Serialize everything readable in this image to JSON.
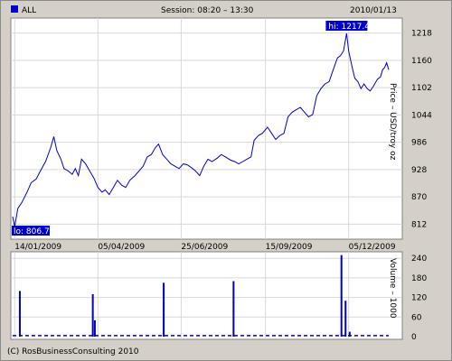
{
  "header": {
    "legend_label": "ALL",
    "session": "Session: 08:20 – 13:30",
    "date": "2010/01/13"
  },
  "footer": {
    "copyright": "(C) RosBusinessConsulting 2010"
  },
  "colors": {
    "series": "#0000cc",
    "panel_bg": "#d4d0c8",
    "plot_bg": "#ffffff",
    "grid": "#d8d8d8",
    "tag_bg": "#0000cc"
  },
  "chart_data": [
    {
      "type": "line",
      "name": "price",
      "ylabel": "Price – USD/troy oz",
      "yticks": [
        812,
        870,
        928,
        986,
        1044,
        1102,
        1160,
        1218
      ],
      "ylim": [
        780,
        1250
      ],
      "xlim": [
        "2009-01-12",
        "2010-01-13"
      ],
      "xticks": [
        {
          "date": "2009-01-14",
          "label": "14/01/2009"
        },
        {
          "date": "2009-04-05",
          "label": "05/04/2009"
        },
        {
          "date": "2009-06-25",
          "label": "25/06/2009"
        },
        {
          "date": "2009-09-15",
          "label": "15/09/2009"
        },
        {
          "date": "2009-12-05",
          "label": "05/12/2009"
        }
      ],
      "hi_label": "hi: 1217.4",
      "lo_label": "lo: 806.7",
      "hi": {
        "date": "2009-12-03",
        "value": 1217.4
      },
      "lo": {
        "date": "2009-01-14",
        "value": 806.7
      },
      "points": [
        [
          "2009-01-12",
          828
        ],
        [
          "2009-01-14",
          806.7
        ],
        [
          "2009-01-17",
          845
        ],
        [
          "2009-01-21",
          858
        ],
        [
          "2009-01-26",
          880
        ],
        [
          "2009-01-30",
          900
        ],
        [
          "2009-02-04",
          908
        ],
        [
          "2009-02-08",
          925
        ],
        [
          "2009-02-13",
          945
        ],
        [
          "2009-02-18",
          975
        ],
        [
          "2009-02-21",
          998
        ],
        [
          "2009-02-24",
          968
        ],
        [
          "2009-02-28",
          950
        ],
        [
          "2009-03-03",
          930
        ],
        [
          "2009-03-07",
          925
        ],
        [
          "2009-03-11",
          918
        ],
        [
          "2009-03-14",
          930
        ],
        [
          "2009-03-17",
          915
        ],
        [
          "2009-03-20",
          950
        ],
        [
          "2009-03-24",
          940
        ],
        [
          "2009-03-28",
          925
        ],
        [
          "2009-04-01",
          910
        ],
        [
          "2009-04-05",
          890
        ],
        [
          "2009-04-09",
          880
        ],
        [
          "2009-04-12",
          885
        ],
        [
          "2009-04-16",
          875
        ],
        [
          "2009-04-20",
          890
        ],
        [
          "2009-04-24",
          905
        ],
        [
          "2009-04-28",
          895
        ],
        [
          "2009-05-02",
          890
        ],
        [
          "2009-05-06",
          905
        ],
        [
          "2009-05-11",
          915
        ],
        [
          "2009-05-15",
          925
        ],
        [
          "2009-05-19",
          935
        ],
        [
          "2009-05-23",
          955
        ],
        [
          "2009-05-27",
          960
        ],
        [
          "2009-05-31",
          975
        ],
        [
          "2009-06-03",
          982
        ],
        [
          "2009-06-07",
          960
        ],
        [
          "2009-06-11",
          950
        ],
        [
          "2009-06-15",
          940
        ],
        [
          "2009-06-19",
          935
        ],
        [
          "2009-06-23",
          930
        ],
        [
          "2009-06-27",
          940
        ],
        [
          "2009-07-01",
          938
        ],
        [
          "2009-07-05",
          932
        ],
        [
          "2009-07-09",
          925
        ],
        [
          "2009-07-13",
          915
        ],
        [
          "2009-07-17",
          935
        ],
        [
          "2009-07-21",
          950
        ],
        [
          "2009-07-25",
          945
        ],
        [
          "2009-07-30",
          952
        ],
        [
          "2009-08-03",
          960
        ],
        [
          "2009-08-07",
          955
        ],
        [
          "2009-08-12",
          948
        ],
        [
          "2009-08-16",
          945
        ],
        [
          "2009-08-20",
          940
        ],
        [
          "2009-08-24",
          945
        ],
        [
          "2009-08-28",
          950
        ],
        [
          "2009-09-01",
          955
        ],
        [
          "2009-09-04",
          990
        ],
        [
          "2009-09-08",
          1000
        ],
        [
          "2009-09-12",
          1005
        ],
        [
          "2009-09-17",
          1018
        ],
        [
          "2009-09-21",
          1005
        ],
        [
          "2009-09-25",
          992
        ],
        [
          "2009-09-29",
          1000
        ],
        [
          "2009-10-03",
          1005
        ],
        [
          "2009-10-07",
          1040
        ],
        [
          "2009-10-11",
          1050
        ],
        [
          "2009-10-15",
          1055
        ],
        [
          "2009-10-19",
          1060
        ],
        [
          "2009-10-23",
          1050
        ],
        [
          "2009-10-27",
          1040
        ],
        [
          "2009-10-31",
          1045
        ],
        [
          "2009-11-04",
          1085
        ],
        [
          "2009-11-08",
          1100
        ],
        [
          "2009-11-12",
          1110
        ],
        [
          "2009-11-16",
          1115
        ],
        [
          "2009-11-20",
          1140
        ],
        [
          "2009-11-24",
          1165
        ],
        [
          "2009-11-27",
          1170
        ],
        [
          "2009-11-30",
          1180
        ],
        [
          "2009-12-03",
          1217.4
        ],
        [
          "2009-12-05",
          1180
        ],
        [
          "2009-12-07",
          1160
        ],
        [
          "2009-12-09",
          1140
        ],
        [
          "2009-12-11",
          1122
        ],
        [
          "2009-12-14",
          1115
        ],
        [
          "2009-12-17",
          1100
        ],
        [
          "2009-12-20",
          1110
        ],
        [
          "2009-12-23",
          1100
        ],
        [
          "2009-12-26",
          1095
        ],
        [
          "2009-12-29",
          1105
        ],
        [
          "2010-01-02",
          1120
        ],
        [
          "2010-01-05",
          1125
        ],
        [
          "2010-01-07",
          1140
        ],
        [
          "2010-01-09",
          1145
        ],
        [
          "2010-01-11",
          1155
        ],
        [
          "2010-01-13",
          1140
        ]
      ]
    },
    {
      "type": "bar",
      "name": "volume",
      "ylabel": "Volume – 1000",
      "yticks": [
        0,
        60,
        120,
        180,
        240
      ],
      "ylim": [
        0,
        260
      ],
      "baseline": 3,
      "spikes": [
        [
          "2009-01-19",
          140
        ],
        [
          "2009-03-31",
          130
        ],
        [
          "2009-04-02",
          50
        ],
        [
          "2009-06-08",
          165
        ],
        [
          "2009-08-15",
          170
        ],
        [
          "2009-11-28",
          250
        ],
        [
          "2009-12-02",
          110
        ],
        [
          "2009-12-06",
          15
        ]
      ]
    }
  ]
}
